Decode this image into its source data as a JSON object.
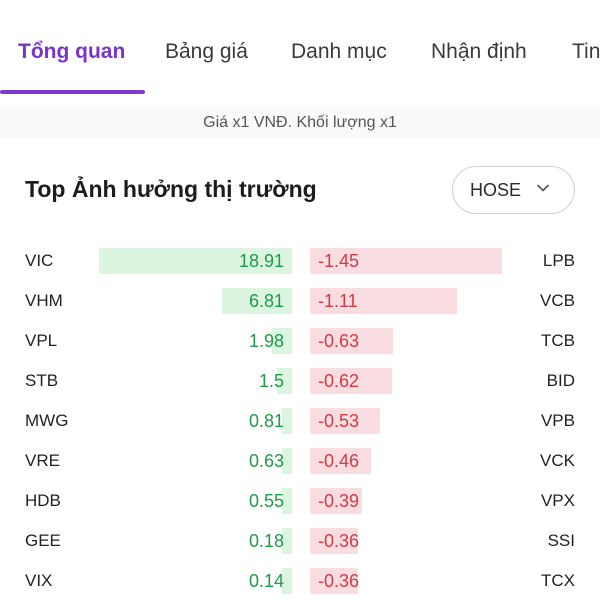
{
  "tabs": [
    {
      "label": "Tổng quan",
      "active": true
    },
    {
      "label": "Bảng giá",
      "active": false
    },
    {
      "label": "Danh mục",
      "active": false
    },
    {
      "label": "Nhận định",
      "active": false
    },
    {
      "label": "Tin",
      "active": false
    }
  ],
  "note": "Giá x1 VNĐ. Khối lượng x1",
  "card": {
    "title": "Top Ảnh hưởng thị trường",
    "exchange": "HOSE"
  },
  "colors": {
    "accent": "#7e3bd0",
    "positive": "#1f9a4a",
    "positive_bar": "#dcf5e1",
    "negative": "#d23a48",
    "negative_bar": "#fadde0"
  },
  "gainers": [
    {
      "symbol": "VIC",
      "value": "18.91",
      "num": 18.91
    },
    {
      "symbol": "VHM",
      "value": "6.81",
      "num": 6.81
    },
    {
      "symbol": "VPL",
      "value": "1.98",
      "num": 1.98
    },
    {
      "symbol": "STB",
      "value": "1.5",
      "num": 1.5
    },
    {
      "symbol": "MWG",
      "value": "0.81",
      "num": 0.81
    },
    {
      "symbol": "VRE",
      "value": "0.63",
      "num": 0.63
    },
    {
      "symbol": "HDB",
      "value": "0.55",
      "num": 0.55
    },
    {
      "symbol": "GEE",
      "value": "0.18",
      "num": 0.18
    },
    {
      "symbol": "VIX",
      "value": "0.14",
      "num": 0.14
    }
  ],
  "losers": [
    {
      "symbol": "LPB",
      "value": "-1.45",
      "num": -1.45
    },
    {
      "symbol": "VCB",
      "value": "-1.11",
      "num": -1.11
    },
    {
      "symbol": "TCB",
      "value": "-0.63",
      "num": -0.63
    },
    {
      "symbol": "BID",
      "value": "-0.62",
      "num": -0.62
    },
    {
      "symbol": "VPB",
      "value": "-0.53",
      "num": -0.53
    },
    {
      "symbol": "VCK",
      "value": "-0.46",
      "num": -0.46
    },
    {
      "symbol": "VPX",
      "value": "-0.39",
      "num": -0.39
    },
    {
      "symbol": "SSI",
      "value": "-0.36",
      "num": -0.36
    },
    {
      "symbol": "TCX",
      "value": "-0.36",
      "num": -0.36
    }
  ]
}
